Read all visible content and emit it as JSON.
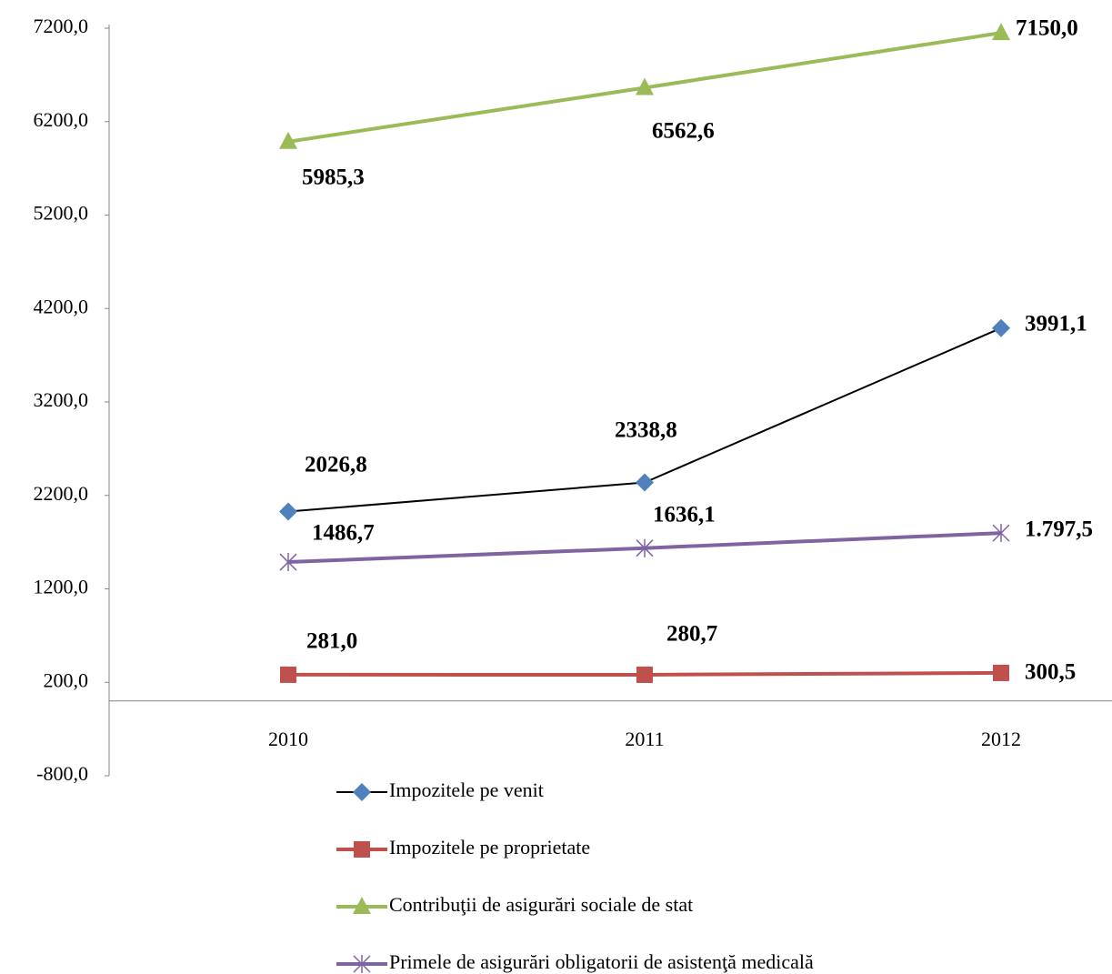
{
  "chart_data": {
    "type": "line",
    "categories": [
      "2010",
      "2011",
      "2012"
    ],
    "ylim": [
      -800,
      7200
    ],
    "yticks": [
      {
        "value": -800,
        "label": "-800,0"
      },
      {
        "value": 200,
        "label": "200,0"
      },
      {
        "value": 1200,
        "label": "1200,0"
      },
      {
        "value": 2200,
        "label": "2200,0"
      },
      {
        "value": 3200,
        "label": "3200,0"
      },
      {
        "value": 4200,
        "label": "4200,0"
      },
      {
        "value": 5200,
        "label": "5200,0"
      },
      {
        "value": 6200,
        "label": "6200,0"
      },
      {
        "value": 7200,
        "label": "7200,0"
      }
    ],
    "grid": false,
    "legend": "bottom",
    "series": [
      {
        "name": "Impozitele pe venit",
        "color": "#000000",
        "marker": "diamond",
        "marker_color": "#4f81bd",
        "values": [
          2026.8,
          2338.8,
          3991.1
        ],
        "value_labels": [
          "2026,8",
          "2338,8",
          "3991,1"
        ]
      },
      {
        "name": "Impozitele pe proprietate",
        "color": "#c0504d",
        "marker": "square",
        "marker_color": "#c0504d",
        "values": [
          281.0,
          280.7,
          300.5
        ],
        "value_labels": [
          "281,0",
          "280,7",
          "300,5"
        ]
      },
      {
        "name": "Contribuţii de asigurări sociale de stat",
        "color": "#9bbb59",
        "marker": "triangle",
        "marker_color": "#9bbb59",
        "values": [
          5985.3,
          6562.6,
          7150.0
        ],
        "value_labels": [
          "5985,3",
          "6562,6",
          "7150,0"
        ]
      },
      {
        "name": "Primele de asigurări obligatorii de asistenţă medicală",
        "color": "#8064a2",
        "marker": "star",
        "marker_color": "#8064a2",
        "values": [
          1486.7,
          1636.1,
          1797.5
        ],
        "value_labels": [
          "1486,7",
          "1636,1",
          "1.797,5"
        ]
      }
    ]
  }
}
